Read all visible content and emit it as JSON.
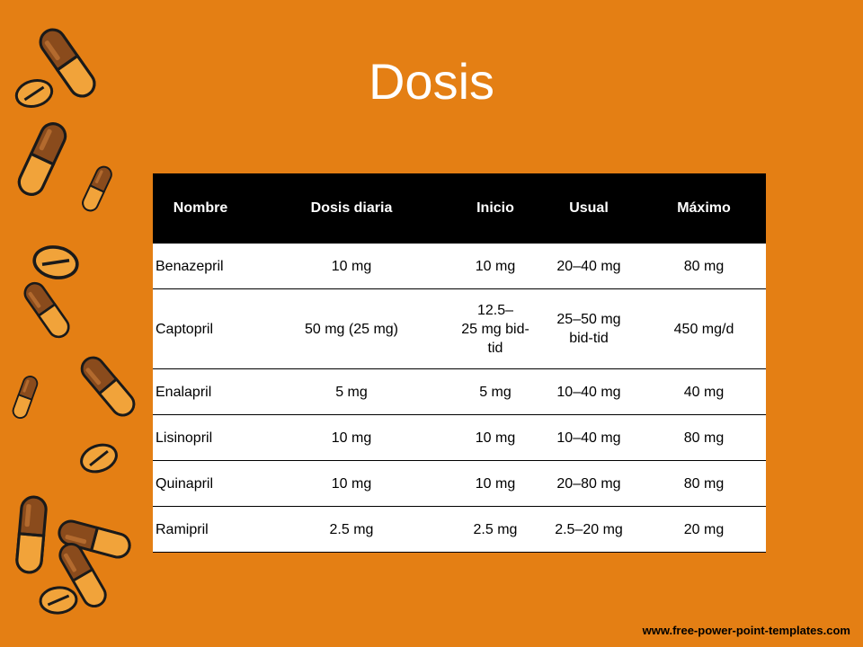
{
  "slide": {
    "title": "Dosis",
    "footer": "www.free-power-point-templates.com"
  },
  "table": {
    "headers": [
      "Nombre",
      "Dosis diaria",
      "Inicio",
      "Usual",
      "Máximo"
    ],
    "rows": [
      [
        "Benazepril",
        "10 mg",
        "10 mg",
        "20–40 mg",
        "80 mg"
      ],
      [
        "Captopril",
        "50 mg (25 mg)",
        "12.5–\n25 mg bid-\ntid",
        "25–50 mg\nbid-tid",
        "450 mg/d"
      ],
      [
        "Enalapril",
        "5 mg",
        "5 mg",
        "10–40 mg",
        "40 mg"
      ],
      [
        "Lisinopril",
        "10 mg",
        "10 mg",
        "10–40 mg",
        "80 mg"
      ],
      [
        "Quinapril",
        "10 mg",
        "10 mg",
        "20–80 mg",
        "80 mg"
      ],
      [
        "Ramipril",
        "2.5 mg",
        "2.5 mg",
        "2.5–20 mg",
        "20 mg"
      ]
    ]
  },
  "colors": {
    "background": "#E47F14",
    "pill_body": "#8A4B1C",
    "pill_half": "#F1A33A",
    "outline": "#1A1A1A",
    "header_bg": "#000000"
  },
  "decor": {
    "pills_icon": "pill-capsule-icon",
    "tablet_icon": "tablet-icon"
  }
}
